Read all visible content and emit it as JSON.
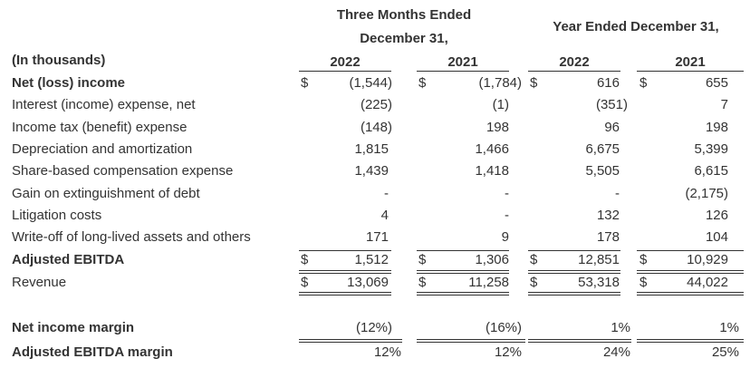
{
  "headers": {
    "group1_line1": "Three Months Ended",
    "group1_line2": "December 31,",
    "group2": "Year Ended December 31,",
    "units": "(In thousands)",
    "years": [
      "2022",
      "2021",
      "2022",
      "2021"
    ]
  },
  "rows": [
    {
      "label": "Net (loss) income",
      "cur": [
        "$",
        "$",
        "$",
        "$"
      ],
      "values": [
        "(1,544)",
        "(1,784)",
        "616",
        "655"
      ]
    },
    {
      "label": "Interest (income) expense, net",
      "cur": [
        "",
        "",
        "",
        ""
      ],
      "values": [
        "(225)",
        "(1)",
        "(351)",
        "7"
      ]
    },
    {
      "label": "Income tax (benefit) expense",
      "cur": [
        "",
        "",
        "",
        ""
      ],
      "values": [
        "(148)",
        "198",
        "96",
        "198"
      ]
    },
    {
      "label": "Depreciation and amortization",
      "cur": [
        "",
        "",
        "",
        ""
      ],
      "values": [
        "1,815",
        "1,466",
        "6,675",
        "5,399"
      ]
    },
    {
      "label": "Share-based compensation expense",
      "cur": [
        "",
        "",
        "",
        ""
      ],
      "values": [
        "1,439",
        "1,418",
        "5,505",
        "6,615"
      ]
    },
    {
      "label": "Gain on extinguishment of debt",
      "cur": [
        "",
        "",
        "",
        ""
      ],
      "values": [
        "-",
        "-",
        "-",
        "(2,175)"
      ]
    },
    {
      "label": "Litigation costs",
      "cur": [
        "",
        "",
        "",
        ""
      ],
      "values": [
        "4",
        "-",
        "132",
        "126"
      ]
    },
    {
      "label": "Write-off of long-lived assets and others",
      "cur": [
        "",
        "",
        "",
        ""
      ],
      "values": [
        "171",
        "9",
        "178",
        "104"
      ]
    },
    {
      "label": "Adjusted EBITDA",
      "cur": [
        "$",
        "$",
        "$",
        "$"
      ],
      "values": [
        "1,512",
        "1,306",
        "12,851",
        "10,929"
      ]
    },
    {
      "label": "Revenue",
      "cur": [
        "$",
        "$",
        "$",
        "$"
      ],
      "values": [
        "13,069",
        "11,258",
        "53,318",
        "44,022"
      ]
    },
    {
      "label": "Net income margin",
      "cur": [
        "",
        "",
        "",
        ""
      ],
      "values": [
        "(12%)",
        "(16%)",
        "1%",
        "1%"
      ]
    },
    {
      "label": "Adjusted EBITDA margin",
      "cur": [
        "",
        "",
        "",
        ""
      ],
      "values": [
        "12%",
        "12%",
        "24%",
        "25%"
      ]
    }
  ]
}
